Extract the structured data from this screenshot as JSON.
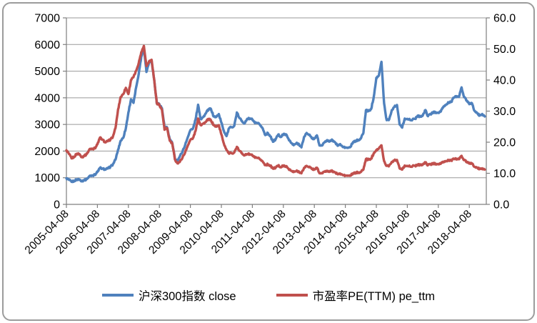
{
  "chart_style": {
    "series_close_color": "#4F81BD",
    "series_pe_color": "#C0504D",
    "gridline_color": "#9a9a9a",
    "axis_color": "#7f7f7f",
    "text_color": "#000000",
    "frame_border_color": "#9c9c9c",
    "background": "#ffffff"
  },
  "legend": {
    "items": [
      {
        "label": "沪深300指数 close",
        "color": "#4F81BD"
      },
      {
        "label": "市盈率PE(TTM) pe_ttm",
        "color": "#C0504D"
      }
    ]
  },
  "chart_data": {
    "type": "line",
    "title": "",
    "xlabel": "",
    "ylabel_left": "",
    "ylabel_right": "",
    "grid": true,
    "legend_position": "bottom",
    "left_axis": {
      "min": 0,
      "max": 7000,
      "step": 1000,
      "tick_labels": [
        "0",
        "1000",
        "2000",
        "3000",
        "4000",
        "5000",
        "6000",
        "7000"
      ]
    },
    "right_axis": {
      "min": 0,
      "max": 60,
      "step": 10,
      "tick_labels": [
        "0.0",
        "10.0",
        "20.0",
        "30.0",
        "40.0",
        "50.0",
        "60.0"
      ]
    },
    "x_tick_labels": [
      "2005-04-08",
      "2006-04-08",
      "2007-04-08",
      "2008-04-08",
      "2009-04-08",
      "2010-04-08",
      "2011-04-08",
      "2012-04-08",
      "2013-04-08",
      "2014-04-08",
      "2015-04-08",
      "2016-04-08",
      "2017-04-08",
      "2018-04-08"
    ],
    "x_sampling": "monthly",
    "x_first_month": "2005-04",
    "x_last_month": "2018-10",
    "series": [
      {
        "name": "沪深300指数 close",
        "axis": "left",
        "color": "#4F81BD",
        "values": [
          980,
          920,
          845,
          880,
          935,
          935,
          880,
          905,
          955,
          1070,
          1085,
          1110,
          1215,
          1370,
          1340,
          1315,
          1345,
          1405,
          1505,
          1680,
          2050,
          2385,
          2500,
          2850,
          3450,
          3940,
          3810,
          4400,
          4900,
          5550,
          5890,
          4970,
          5340,
          5385,
          4670,
          3790,
          3760,
          3610,
          2900,
          2880,
          2450,
          2295,
          1720,
          1640,
          1820,
          2000,
          2240,
          2520,
          2790,
          2850,
          3180,
          3740,
          3200,
          3280,
          3420,
          3570,
          3576,
          3300,
          3280,
          3390,
          3070,
          2750,
          2560,
          2860,
          2900,
          2950,
          3450,
          3240,
          3130,
          3040,
          3210,
          3220,
          3190,
          3050,
          3050,
          2980,
          2850,
          2600,
          2680,
          2550,
          2350,
          2440,
          2620,
          2530,
          2630,
          2630,
          2460,
          2310,
          2220,
          2290,
          2270,
          2140,
          2520,
          2680,
          2620,
          2480,
          2470,
          2590,
          2210,
          2210,
          2330,
          2410,
          2370,
          2410,
          2330,
          2200,
          2260,
          2150,
          2140,
          2120,
          2160,
          2340,
          2370,
          2420,
          2470,
          2680,
          3540,
          3500,
          3580,
          4030,
          4750,
          4840,
          5350,
          3790,
          3160,
          3200,
          3540,
          3660,
          3730,
          3010,
          2880,
          3220,
          3210,
          3170,
          3180,
          3210,
          3330,
          3290,
          3340,
          3540,
          3310,
          3390,
          3450,
          3460,
          3440,
          3490,
          3670,
          3740,
          3830,
          3840,
          4010,
          4060,
          4030,
          4390,
          4020,
          3900,
          3760,
          3800,
          3510,
          3430,
          3330,
          3390,
          3300
        ]
      },
      {
        "name": "市盈率PE(TTM) pe_ttm",
        "axis": "right",
        "color": "#C0504D",
        "values": [
          17.4,
          16.2,
          14.8,
          15.3,
          16.3,
          16.2,
          15.2,
          15.6,
          16.3,
          17.8,
          17.9,
          18.0,
          19.3,
          21.5,
          20.8,
          20.0,
          20.3,
          20.8,
          21.8,
          24.5,
          30.5,
          34.5,
          35.5,
          37.5,
          35.5,
          40.0,
          41.0,
          43.0,
          45.5,
          49.0,
          51.0,
          44.5,
          46.0,
          46.5,
          40.0,
          32.5,
          32.0,
          30.5,
          24.0,
          24.5,
          20.5,
          19.5,
          14.5,
          13.2,
          13.8,
          15.2,
          16.8,
          18.9,
          20.8,
          21.3,
          23.6,
          27.6,
          25.5,
          26.0,
          26.5,
          27.5,
          27.0,
          25.5,
          25.0,
          25.5,
          22.5,
          19.5,
          17.5,
          16.3,
          16.5,
          16.7,
          18.5,
          17.2,
          16.5,
          15.8,
          16.2,
          16.1,
          15.8,
          15.0,
          14.9,
          14.5,
          13.8,
          12.6,
          12.9,
          12.4,
          11.5,
          11.8,
          12.5,
          12.0,
          12.4,
          12.3,
          11.5,
          10.8,
          10.4,
          10.7,
          10.6,
          10.0,
          11.7,
          12.4,
          12.1,
          11.4,
          11.3,
          11.8,
          10.0,
          10.0,
          10.5,
          10.8,
          10.6,
          10.7,
          10.3,
          9.7,
          9.9,
          9.4,
          9.3,
          9.2,
          9.3,
          10.0,
          10.1,
          10.3,
          10.4,
          11.2,
          14.6,
          14.4,
          14.7,
          16.5,
          17.5,
          18.0,
          19.0,
          13.9,
          12.4,
          12.5,
          13.7,
          14.1,
          14.3,
          11.6,
          11.2,
          12.5,
          12.4,
          12.2,
          12.3,
          12.4,
          12.8,
          12.7,
          12.8,
          13.5,
          12.6,
          12.9,
          13.1,
          13.1,
          13.0,
          13.1,
          13.7,
          13.9,
          14.2,
          14.1,
          14.6,
          14.7,
          14.5,
          15.6,
          14.2,
          13.7,
          13.1,
          13.2,
          12.1,
          11.8,
          11.4,
          11.6,
          11.2
        ]
      }
    ]
  }
}
